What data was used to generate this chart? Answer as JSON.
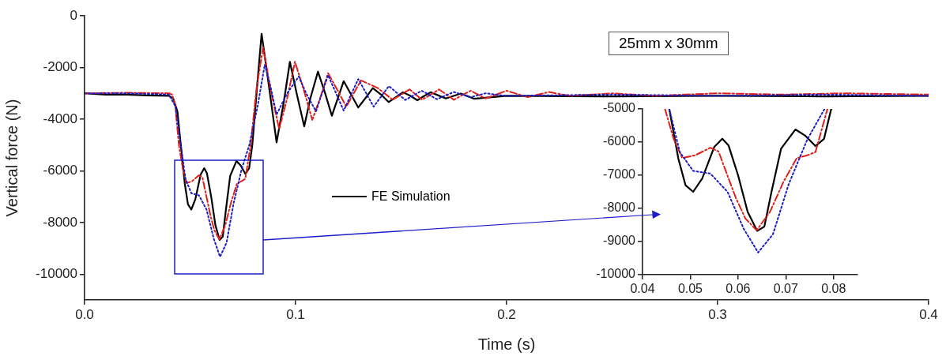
{
  "chart_data": [
    {
      "type": "line",
      "xlabel": "Time (s)",
      "ylabel": "Vertical force (N)",
      "xlim": [
        0,
        0.4
      ],
      "xticks": [
        {
          "value": 0,
          "label": "0.0"
        },
        0.1,
        0.2,
        0.3,
        0.4
      ],
      "ylim": [
        -11000,
        0
      ],
      "yticks": [
        0,
        -2000,
        -4000,
        -6000,
        -8000,
        -10000
      ],
      "grid": false,
      "legend": "center",
      "marker": "none",
      "annotations": [
        "25mm x 30mm"
      ],
      "series": [
        {
          "color": "#1c1cc8",
          "line_style": "dotted",
          "x": [
            0,
            0.02,
            0.04,
            0.043,
            0.0456,
            0.0478,
            0.0506,
            0.0542,
            0.0578,
            0.0612,
            0.0642,
            0.0673,
            0.0706,
            0.0745,
            0.0781,
            0.082,
            0.0854,
            0.088,
            0.091,
            0.096,
            0.1015,
            0.105,
            0.1097,
            0.1125,
            0.1154,
            0.1228,
            0.1297,
            0.137,
            0.1442,
            0.152,
            0.1598,
            0.167,
            0.175,
            0.183,
            0.19,
            0.2,
            0.25,
            0.3,
            0.35,
            0.4
          ],
          "values": [
            -3000,
            -3000,
            -3050,
            -3500,
            -5000,
            -6300,
            -6870,
            -6950,
            -7500,
            -8620,
            -9330,
            -8780,
            -7270,
            -5920,
            -5000,
            -3500,
            -1890,
            -2700,
            -3820,
            -3000,
            -2350,
            -3000,
            -3700,
            -3000,
            -2300,
            -3670,
            -2450,
            -3520,
            -2720,
            -3260,
            -2900,
            -3230,
            -2950,
            -3150,
            -3000,
            -3100,
            -3050,
            -3100,
            -3050,
            -3100
          ]
        },
        {
          "color": "#e0201b",
          "line_style": "dashdot",
          "x": [
            0,
            0.02,
            0.04,
            0.0415,
            0.043,
            0.0447,
            0.0465,
            0.0483,
            0.051,
            0.0542,
            0.0559,
            0.0575,
            0.0595,
            0.0615,
            0.0639,
            0.0667,
            0.0695,
            0.0723,
            0.0745,
            0.0762,
            0.0787,
            0.0815,
            0.0846,
            0.088,
            0.0922,
            0.096,
            0.0997,
            0.104,
            0.1079,
            0.112,
            0.1154,
            0.12,
            0.124,
            0.131,
            0.139,
            0.146,
            0.154,
            0.16,
            0.168,
            0.175,
            0.183,
            0.19,
            0.2,
            0.21,
            0.22,
            0.23,
            0.25,
            0.27,
            0.3,
            0.33,
            0.36,
            0.4
          ],
          "values": [
            -3000,
            -2980,
            -3000,
            -3050,
            -3500,
            -5000,
            -5900,
            -6480,
            -6400,
            -6170,
            -6280,
            -6900,
            -7670,
            -8300,
            -8660,
            -8100,
            -7200,
            -6480,
            -6400,
            -6300,
            -5000,
            -2800,
            -1220,
            -2800,
            -4380,
            -3200,
            -1780,
            -2900,
            -4030,
            -3100,
            -2220,
            -2900,
            -3520,
            -2500,
            -2800,
            -3250,
            -2850,
            -3250,
            -2850,
            -3250,
            -2900,
            -3200,
            -2900,
            -3150,
            -2950,
            -3100,
            -3000,
            -3100,
            -3000,
            -3050,
            -3000,
            -3050
          ]
        },
        {
          "name": "FE Simulation",
          "color": "#000000",
          "line_style": "solid",
          "x": [
            0,
            0.01,
            0.02,
            0.03,
            0.04,
            0.042,
            0.044,
            0.0456,
            0.0475,
            0.049,
            0.0506,
            0.0525,
            0.055,
            0.0567,
            0.058,
            0.06,
            0.062,
            0.064,
            0.0655,
            0.067,
            0.069,
            0.072,
            0.074,
            0.0762,
            0.078,
            0.0795,
            0.082,
            0.0839,
            0.0865,
            0.091,
            0.0945,
            0.0973,
            0.1005,
            0.1041,
            0.107,
            0.1106,
            0.114,
            0.1172,
            0.12,
            0.1228,
            0.126,
            0.1297,
            0.133,
            0.1366,
            0.1405,
            0.1441,
            0.1475,
            0.1509,
            0.1545,
            0.1577,
            0.161,
            0.164,
            0.1712,
            0.1783,
            0.1845,
            0.2,
            0.25,
            0.3,
            0.35,
            0.4
          ],
          "values": [
            -3000,
            -3050,
            -3050,
            -3080,
            -3100,
            -3200,
            -3700,
            -5000,
            -6500,
            -7300,
            -7500,
            -7100,
            -6150,
            -5900,
            -6100,
            -7000,
            -8100,
            -8680,
            -8550,
            -7500,
            -6200,
            -5620,
            -5800,
            -6120,
            -5900,
            -5000,
            -2500,
            -700,
            -2200,
            -4900,
            -3300,
            -1780,
            -3000,
            -4280,
            -3200,
            -2160,
            -3000,
            -3870,
            -3200,
            -2530,
            -3000,
            -3550,
            -3200,
            -2800,
            -3050,
            -3340,
            -3150,
            -2960,
            -3100,
            -3270,
            -3100,
            -2960,
            -3200,
            -3010,
            -3210,
            -3100,
            -3120,
            -3100,
            -3120,
            -3100
          ]
        }
      ]
    },
    {
      "type": "line",
      "xlim": [
        0.04,
        0.085
      ],
      "xticks": [
        0.04,
        0.05,
        0.06,
        0.07,
        0.08
      ],
      "ylim": [
        -10000,
        -5000
      ],
      "yticks": [
        -5000,
        -6000,
        -7000,
        -8000,
        -9000,
        -10000
      ],
      "grid": false,
      "marker": "none",
      "series": [
        {
          "color": "#1c1cc8",
          "line_style": "dotted",
          "x": [
            0.0456,
            0.0478,
            0.0506,
            0.0542,
            0.0578,
            0.0612,
            0.0642,
            0.0673,
            0.0706,
            0.0745,
            0.0781
          ],
          "values": [
            -5000,
            -6300,
            -6870,
            -6950,
            -7500,
            -8620,
            -9330,
            -8780,
            -7270,
            -5920,
            -5000
          ]
        },
        {
          "color": "#e0201b",
          "line_style": "dashdot",
          "x": [
            0.0447,
            0.0465,
            0.0483,
            0.051,
            0.0542,
            0.0559,
            0.0575,
            0.0595,
            0.0615,
            0.0639,
            0.0667,
            0.0695,
            0.0723,
            0.0745,
            0.0762,
            0.0787
          ],
          "values": [
            -5000,
            -5900,
            -6480,
            -6400,
            -6170,
            -6280,
            -6900,
            -7670,
            -8300,
            -8660,
            -8100,
            -7200,
            -6480,
            -6400,
            -6300,
            -5000
          ]
        },
        {
          "color": "#000000",
          "line_style": "solid",
          "x": [
            0.0456,
            0.0475,
            0.049,
            0.0506,
            0.0525,
            0.055,
            0.0567,
            0.058,
            0.06,
            0.062,
            0.064,
            0.0655,
            0.067,
            0.069,
            0.072,
            0.074,
            0.0762,
            0.078,
            0.0795
          ],
          "values": [
            -5000,
            -6500,
            -7300,
            -7500,
            -7100,
            -6150,
            -5900,
            -6100,
            -7000,
            -8100,
            -8680,
            -8550,
            -7500,
            -6200,
            -5620,
            -5800,
            -6120,
            -5900,
            -5000
          ]
        }
      ]
    }
  ]
}
